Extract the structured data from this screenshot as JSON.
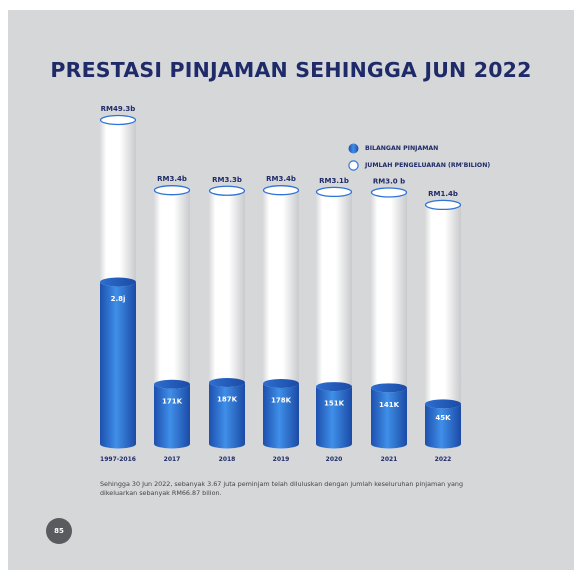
{
  "title": "PRESTASI PINJAMAN SEHINGGA JUN 2022",
  "legend": {
    "count": "BILANGAN PINJAMAN",
    "amount": "JUMLAH PENGELUARAN (RM'BILION)"
  },
  "footnote": "Sehingga 30 Jun 2022, sebanyak 3.67 juta peminjam telah diluluskan dengan jumlah keseluruhan pinjaman yang dikeluarkan sebanyak RM66.87 bilion.",
  "page_number": "85",
  "colors": {
    "background": "#d6d7d9",
    "title": "#1f2a68",
    "blue_dark": "#1d4fae",
    "blue_light": "#3f8fe8",
    "cylinder_white": "#ffffff"
  },
  "chart_data": {
    "type": "bar",
    "style": "cylinder",
    "categories": [
      "1997-2016",
      "2017",
      "2018",
      "2019",
      "2020",
      "2021",
      "2022"
    ],
    "series": [
      {
        "name": "JUMLAH PENGELUARAN (RM'BILION)",
        "values": [
          49.3,
          3.4,
          3.3,
          3.4,
          3.1,
          3.0,
          1.4
        ],
        "labels": [
          "RM49.3b",
          "RM3.4b",
          "RM3.3b",
          "RM3.4b",
          "RM3.1b",
          "RM3.0 b",
          "RM1.4b"
        ]
      },
      {
        "name": "BILANGAN PINJAMAN",
        "values": [
          2800000,
          171000,
          187000,
          178000,
          151000,
          141000,
          45000
        ],
        "labels": [
          "2.8j",
          "171K",
          "187K",
          "178K",
          "151K",
          "141K",
          "45K"
        ]
      }
    ],
    "legend": "top-right",
    "grid": false
  }
}
